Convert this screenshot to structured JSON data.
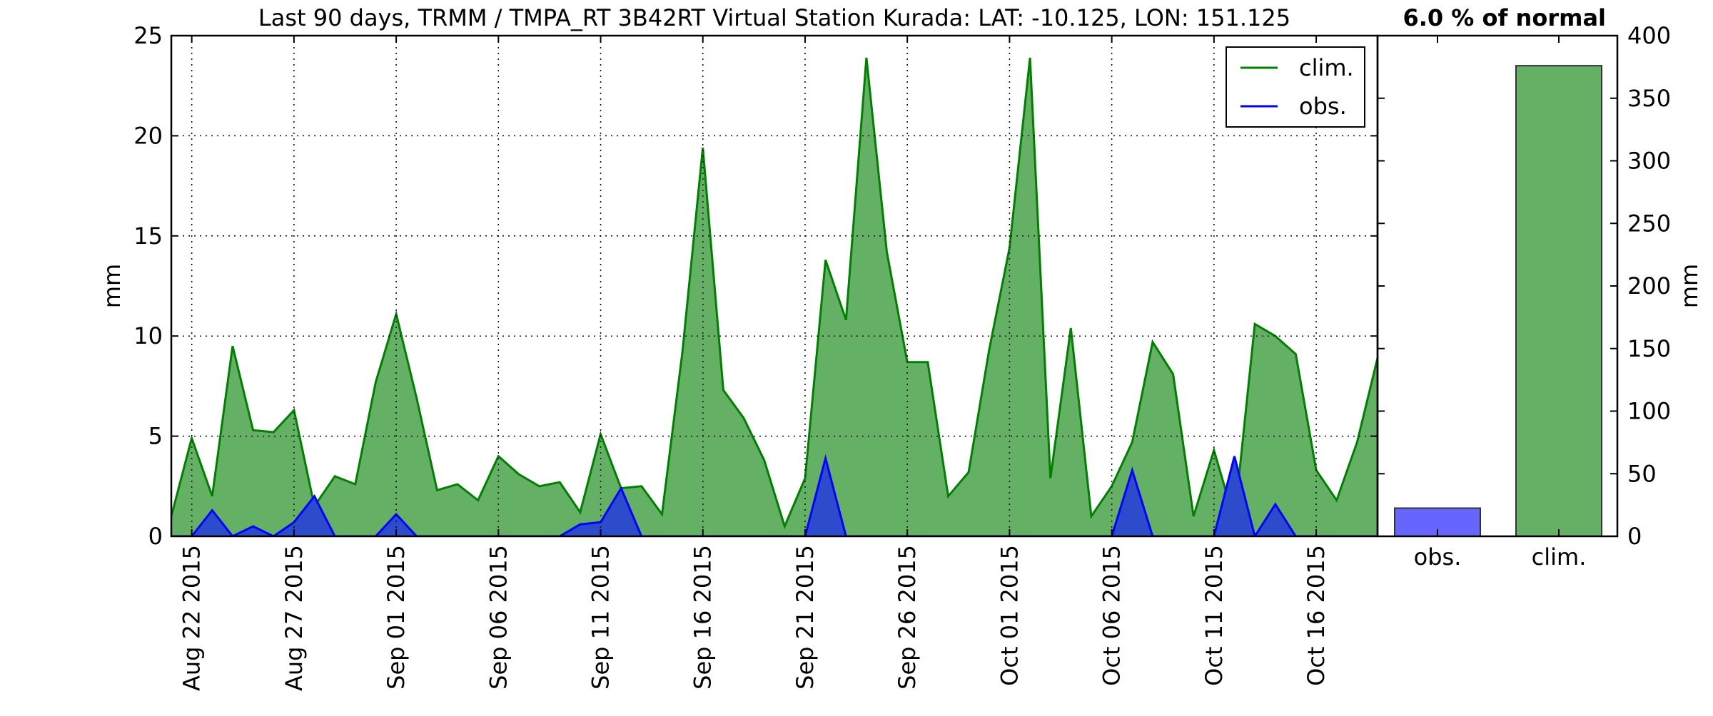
{
  "title": "Last 90 days, TRMM / TMPA_RT 3B42RT Virtual Station Kurada: LAT: -10.125, LON: 151.125",
  "percent_label": "6.0 % of normal",
  "colors": {
    "clim_line": "#008000",
    "clim_fill": "#64b064",
    "obs_line": "#0000ff",
    "obs_fill": "#2d4ccc",
    "bar_obs": "#6666ff",
    "bar_clim": "#64b064",
    "bar_edge": "#333333",
    "grid": "#000000"
  },
  "chart_data": [
    {
      "type": "area",
      "ylabel": "mm",
      "xlabel": "",
      "ylim": [
        0,
        25
      ],
      "yticks": [
        0,
        5,
        10,
        15,
        20,
        25
      ],
      "grid": true,
      "legend_position": "top-right",
      "xticks": [
        {
          "day": 1,
          "label": "Aug 22 2015"
        },
        {
          "day": 6,
          "label": "Aug 27 2015"
        },
        {
          "day": 11,
          "label": "Sep 01 2015"
        },
        {
          "day": 16,
          "label": "Sep 06 2015"
        },
        {
          "day": 21,
          "label": "Sep 11 2015"
        },
        {
          "day": 26,
          "label": "Sep 16 2015"
        },
        {
          "day": 31,
          "label": "Sep 21 2015"
        },
        {
          "day": 36,
          "label": "Sep 26 2015"
        },
        {
          "day": 41,
          "label": "Oct 01 2015"
        },
        {
          "day": 46,
          "label": "Oct 06 2015"
        },
        {
          "day": 51,
          "label": "Oct 11 2015"
        },
        {
          "day": 56,
          "label": "Oct 16 2015"
        }
      ],
      "series": [
        {
          "name": "clim.",
          "points": [
            [
              0,
              1.0
            ],
            [
              1,
              4.9
            ],
            [
              2,
              2.0
            ],
            [
              3,
              9.5
            ],
            [
              4,
              5.3
            ],
            [
              5,
              5.2
            ],
            [
              6,
              6.3
            ],
            [
              7,
              1.5
            ],
            [
              8,
              3.0
            ],
            [
              9,
              2.6
            ],
            [
              10,
              7.7
            ],
            [
              11,
              11.1
            ],
            [
              12,
              6.9
            ],
            [
              13,
              2.3
            ],
            [
              14,
              2.6
            ],
            [
              15,
              1.8
            ],
            [
              16,
              4.0
            ],
            [
              17,
              3.1
            ],
            [
              18,
              2.5
            ],
            [
              19,
              2.7
            ],
            [
              20,
              1.2
            ],
            [
              21,
              5.1
            ],
            [
              22,
              2.4
            ],
            [
              23,
              2.5
            ],
            [
              24,
              1.1
            ],
            [
              25,
              9.2
            ],
            [
              26,
              19.4
            ],
            [
              27,
              7.3
            ],
            [
              28,
              5.9
            ],
            [
              29,
              3.8
            ],
            [
              30,
              0.5
            ],
            [
              31,
              2.9
            ],
            [
              32,
              13.8
            ],
            [
              33,
              10.8
            ],
            [
              34,
              23.9
            ],
            [
              35,
              14.2
            ],
            [
              36,
              8.7
            ],
            [
              37,
              8.7
            ],
            [
              38,
              2.0
            ],
            [
              39,
              3.2
            ],
            [
              40,
              9.3
            ],
            [
              41,
              14.4
            ],
            [
              42,
              23.9
            ],
            [
              43,
              2.9
            ],
            [
              44,
              10.4
            ],
            [
              45,
              1.0
            ],
            [
              46,
              2.5
            ],
            [
              47,
              4.7
            ],
            [
              48,
              9.7
            ],
            [
              49,
              8.1
            ],
            [
              50,
              1.0
            ],
            [
              51,
              4.3
            ],
            [
              52,
              0.8
            ],
            [
              53,
              10.6
            ],
            [
              54,
              10.0
            ],
            [
              55,
              9.1
            ],
            [
              56,
              3.3
            ],
            [
              57,
              1.8
            ],
            [
              58,
              4.7
            ],
            [
              59,
              8.9
            ]
          ]
        },
        {
          "name": "obs.",
          "points": [
            [
              0,
              0
            ],
            [
              1,
              0
            ],
            [
              2,
              1.3
            ],
            [
              3,
              0
            ],
            [
              4,
              0.5
            ],
            [
              5,
              0
            ],
            [
              6,
              0.7
            ],
            [
              7,
              2.0
            ],
            [
              8,
              0
            ],
            [
              9,
              0
            ],
            [
              10,
              0
            ],
            [
              11,
              1.1
            ],
            [
              12,
              0
            ],
            [
              13,
              0
            ],
            [
              14,
              0
            ],
            [
              15,
              0
            ],
            [
              16,
              0
            ],
            [
              17,
              0
            ],
            [
              18,
              0
            ],
            [
              19,
              0
            ],
            [
              20,
              0.6
            ],
            [
              21,
              0.7
            ],
            [
              22,
              2.4
            ],
            [
              23,
              0
            ],
            [
              24,
              0
            ],
            [
              25,
              0
            ],
            [
              26,
              0
            ],
            [
              27,
              0
            ],
            [
              28,
              0
            ],
            [
              29,
              0
            ],
            [
              30,
              0
            ],
            [
              31,
              0
            ],
            [
              32,
              3.9
            ],
            [
              33,
              0
            ],
            [
              34,
              0
            ],
            [
              35,
              0
            ],
            [
              36,
              0
            ],
            [
              37,
              0
            ],
            [
              38,
              0
            ],
            [
              39,
              0
            ],
            [
              40,
              0
            ],
            [
              41,
              0
            ],
            [
              42,
              0
            ],
            [
              43,
              0
            ],
            [
              44,
              0
            ],
            [
              45,
              0
            ],
            [
              46,
              0
            ],
            [
              47,
              3.3
            ],
            [
              48,
              0
            ],
            [
              49,
              0
            ],
            [
              50,
              0
            ],
            [
              51,
              0
            ],
            [
              52,
              4.0
            ],
            [
              53,
              0
            ],
            [
              54,
              1.6
            ],
            [
              55,
              0
            ],
            [
              56,
              0
            ],
            [
              57,
              0
            ],
            [
              58,
              0
            ],
            [
              59,
              0
            ]
          ]
        }
      ]
    },
    {
      "type": "bar",
      "categories": [
        "obs.",
        "clim."
      ],
      "values": [
        22.5,
        376
      ],
      "ylabel": "mm",
      "xlabel": "",
      "ylim": [
        0,
        400
      ],
      "yticks": [
        0,
        50,
        100,
        150,
        200,
        250,
        300,
        350,
        400
      ]
    }
  ]
}
